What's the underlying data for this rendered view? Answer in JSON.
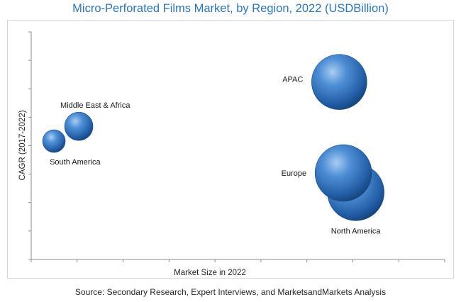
{
  "chart_data": {
    "type": "bubble",
    "title": "Micro-Perforated Films Market, by Region, 2022 (USDBillion)",
    "xlabel": "Market Size in 2022",
    "ylabel": "CAGR (2017-2022)",
    "xlim": [
      0,
      10
    ],
    "ylim": [
      0,
      10
    ],
    "grid": false,
    "legend": "none",
    "bubble_color": "#2e6db4",
    "points": [
      {
        "label": "South America",
        "x": 0.55,
        "y": 5.2,
        "size": 1.6
      },
      {
        "label": "Middle East & Africa",
        "x": 1.15,
        "y": 5.85,
        "size": 2.0
      },
      {
        "label": "APAC",
        "x": 7.45,
        "y": 7.8,
        "size": 3.9
      },
      {
        "label": "North America",
        "x": 7.85,
        "y": 2.95,
        "size": 4.0
      },
      {
        "label": "Europe",
        "x": 7.55,
        "y": 3.8,
        "size": 4.0
      }
    ]
  },
  "source": "Source: Secondary Research, Expert Interviews, and MarketsandMarkets Analysis"
}
